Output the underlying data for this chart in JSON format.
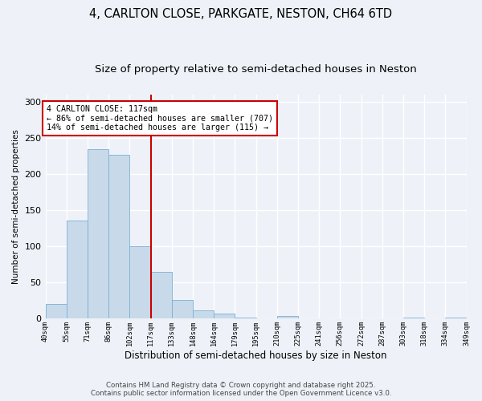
{
  "title_line1": "4, CARLTON CLOSE, PARKGATE, NESTON, CH64 6TD",
  "title_line2": "Size of property relative to semi-detached houses in Neston",
  "xlabel": "Distribution of semi-detached houses by size in Neston",
  "ylabel": "Number of semi-detached properties",
  "bar_values": [
    20,
    135,
    234,
    226,
    100,
    65,
    26,
    11,
    7,
    1,
    0,
    4,
    0,
    0,
    0,
    0,
    0,
    1,
    0,
    1
  ],
  "categories": [
    "40sqm",
    "55sqm",
    "71sqm",
    "86sqm",
    "102sqm",
    "117sqm",
    "133sqm",
    "148sqm",
    "164sqm",
    "179sqm",
    "195sqm",
    "210sqm",
    "225sqm",
    "241sqm",
    "256sqm",
    "272sqm",
    "287sqm",
    "303sqm",
    "318sqm",
    "334sqm",
    "349sqm"
  ],
  "bar_color": "#c8daea",
  "bar_edge_color": "#7bafd4",
  "vline_color": "#cc0000",
  "annotation_text": "4 CARLTON CLOSE: 117sqm\n← 86% of semi-detached houses are smaller (707)\n14% of semi-detached houses are larger (115) →",
  "annotation_box_color": "#cc0000",
  "ylim": [
    0,
    310
  ],
  "yticks": [
    0,
    50,
    100,
    150,
    200,
    250,
    300
  ],
  "footer": "Contains HM Land Registry data © Crown copyright and database right 2025.\nContains public sector information licensed under the Open Government Licence v3.0.",
  "bg_color": "#eef2f8",
  "grid_color": "#ffffff",
  "title_fontsize": 10.5,
  "subtitle_fontsize": 9.5
}
